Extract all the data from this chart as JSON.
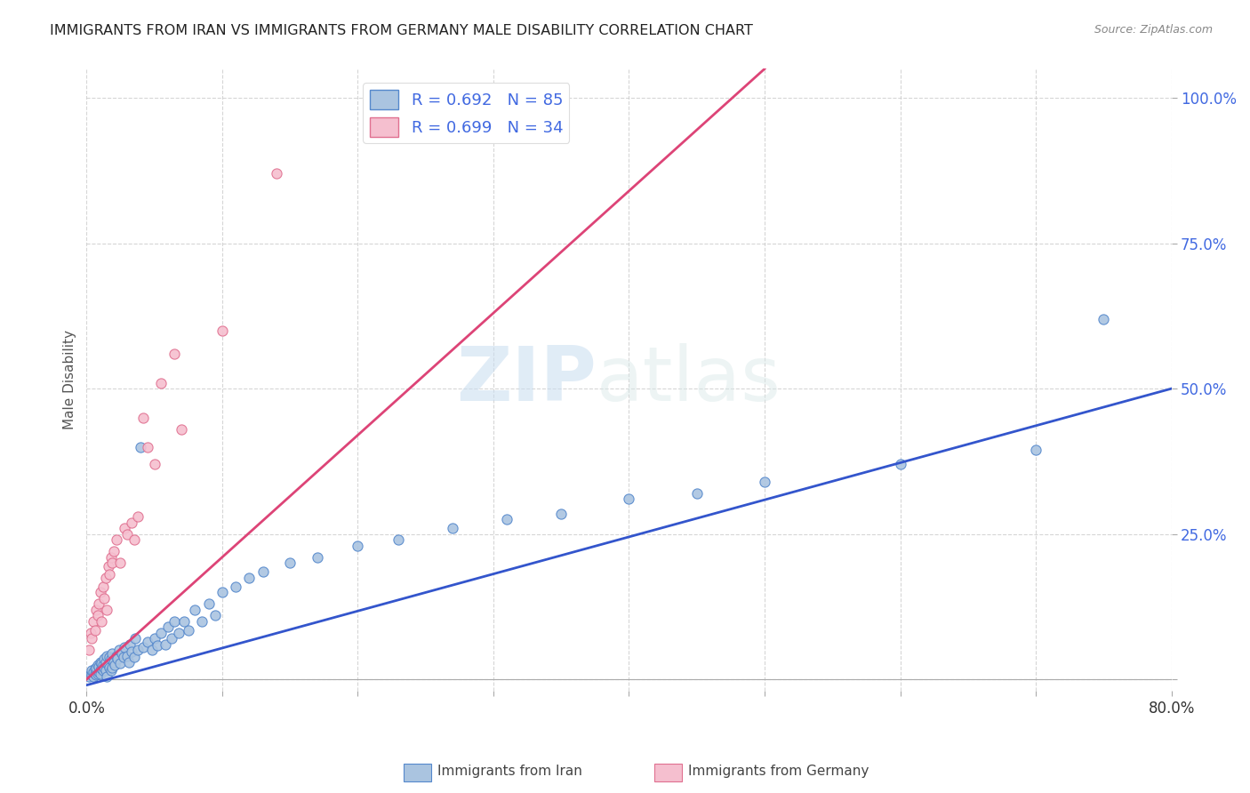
{
  "title": "IMMIGRANTS FROM IRAN VS IMMIGRANTS FROM GERMANY MALE DISABILITY CORRELATION CHART",
  "source": "Source: ZipAtlas.com",
  "ylabel": "Male Disability",
  "xlim": [
    0.0,
    0.8
  ],
  "ylim": [
    -0.02,
    1.05
  ],
  "iran_color": "#aac4e0",
  "iran_edge_color": "#5588cc",
  "germany_color": "#f5bfcf",
  "germany_edge_color": "#e07090",
  "iran_line_color": "#3355cc",
  "germany_line_color": "#dd4477",
  "iran_R": 0.692,
  "iran_N": 85,
  "germany_R": 0.699,
  "germany_N": 34,
  "watermark_zip": "ZIP",
  "watermark_atlas": "atlas",
  "legend_label_iran": "Immigrants from Iran",
  "legend_label_germany": "Immigrants from Germany",
  "iran_line_x0": 0.0,
  "iran_line_y0": -0.01,
  "iran_line_x1": 0.8,
  "iran_line_y1": 0.5,
  "germany_line_x0": 0.0,
  "germany_line_y0": 0.0,
  "germany_line_x1": 0.5,
  "germany_line_y1": 1.05,
  "iran_scatter_x": [
    0.002,
    0.003,
    0.004,
    0.004,
    0.005,
    0.005,
    0.006,
    0.006,
    0.007,
    0.007,
    0.008,
    0.008,
    0.009,
    0.009,
    0.01,
    0.01,
    0.01,
    0.011,
    0.011,
    0.012,
    0.012,
    0.013,
    0.013,
    0.014,
    0.014,
    0.015,
    0.015,
    0.016,
    0.017,
    0.017,
    0.018,
    0.018,
    0.019,
    0.019,
    0.02,
    0.021,
    0.022,
    0.023,
    0.024,
    0.025,
    0.026,
    0.027,
    0.028,
    0.03,
    0.031,
    0.032,
    0.033,
    0.035,
    0.036,
    0.038,
    0.04,
    0.042,
    0.045,
    0.048,
    0.05,
    0.052,
    0.055,
    0.058,
    0.06,
    0.063,
    0.065,
    0.068,
    0.072,
    0.075,
    0.08,
    0.085,
    0.09,
    0.095,
    0.1,
    0.11,
    0.12,
    0.13,
    0.15,
    0.17,
    0.2,
    0.23,
    0.27,
    0.31,
    0.35,
    0.4,
    0.45,
    0.5,
    0.6,
    0.7,
    0.75
  ],
  "iran_scatter_y": [
    0.005,
    0.01,
    0.008,
    0.015,
    0.005,
    0.012,
    0.01,
    0.018,
    0.008,
    0.02,
    0.01,
    0.025,
    0.012,
    0.022,
    0.015,
    0.01,
    0.03,
    0.018,
    0.028,
    0.015,
    0.025,
    0.02,
    0.035,
    0.015,
    0.03,
    0.005,
    0.04,
    0.025,
    0.02,
    0.038,
    0.015,
    0.035,
    0.02,
    0.045,
    0.03,
    0.025,
    0.04,
    0.035,
    0.05,
    0.028,
    0.045,
    0.038,
    0.055,
    0.04,
    0.03,
    0.06,
    0.048,
    0.038,
    0.07,
    0.05,
    0.4,
    0.055,
    0.065,
    0.05,
    0.07,
    0.058,
    0.08,
    0.06,
    0.09,
    0.07,
    0.1,
    0.08,
    0.1,
    0.085,
    0.12,
    0.1,
    0.13,
    0.11,
    0.15,
    0.16,
    0.175,
    0.185,
    0.2,
    0.21,
    0.23,
    0.24,
    0.26,
    0.275,
    0.285,
    0.31,
    0.32,
    0.34,
    0.37,
    0.395,
    0.62
  ],
  "germany_scatter_x": [
    0.002,
    0.003,
    0.004,
    0.005,
    0.006,
    0.007,
    0.008,
    0.009,
    0.01,
    0.011,
    0.012,
    0.013,
    0.014,
    0.015,
    0.016,
    0.017,
    0.018,
    0.019,
    0.02,
    0.022,
    0.025,
    0.028,
    0.03,
    0.033,
    0.035,
    0.038,
    0.042,
    0.045,
    0.05,
    0.055,
    0.065,
    0.07,
    0.1,
    0.14
  ],
  "germany_scatter_y": [
    0.05,
    0.08,
    0.07,
    0.1,
    0.085,
    0.12,
    0.11,
    0.13,
    0.15,
    0.1,
    0.16,
    0.14,
    0.175,
    0.12,
    0.195,
    0.18,
    0.21,
    0.2,
    0.22,
    0.24,
    0.2,
    0.26,
    0.25,
    0.27,
    0.24,
    0.28,
    0.45,
    0.4,
    0.37,
    0.51,
    0.56,
    0.43,
    0.6,
    0.87
  ]
}
